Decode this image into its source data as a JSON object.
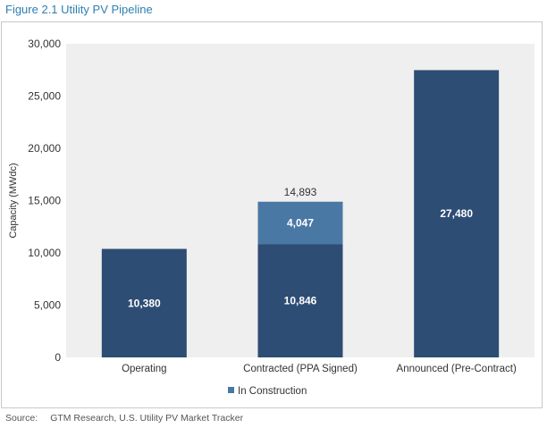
{
  "figure_title": "Figure 2.1  Utility PV Pipeline",
  "source_label": "Source:",
  "source_text": "GTM Research, U.S. Utility PV Market Tracker",
  "colors": {
    "plot_bg": "#efefef",
    "bar_dark": "#2e4d74",
    "bar_light": "#4a78a4",
    "title": "#2e7fb0"
  },
  "chart_data": {
    "type": "bar",
    "stacked": true,
    "categories": [
      "Operating",
      "Contracted (PPA Signed)",
      "Announced (Pre-Contract)"
    ],
    "series": [
      {
        "values": [
          10380,
          10846,
          27480
        ],
        "labels": [
          "10,380",
          "10,846",
          "27,480"
        ],
        "color": "#2e4d74"
      },
      {
        "name": "In Construction",
        "values": [
          0,
          4047,
          0
        ],
        "labels": [
          "",
          "4,047",
          ""
        ],
        "color": "#4a78a4"
      }
    ],
    "totals": [
      null,
      14893,
      null
    ],
    "total_labels": [
      "",
      "14,893",
      ""
    ],
    "ylabel": "Capacity (MWdc)",
    "ylim": [
      0,
      30000
    ],
    "yticks": [
      0,
      5000,
      10000,
      15000,
      20000,
      25000,
      30000
    ],
    "ytick_labels": [
      "0",
      "5,000",
      "10,000",
      "15,000",
      "20,000",
      "25,000",
      "30,000"
    ],
    "legend": [
      "In Construction"
    ],
    "legend_position": "bottom-center"
  }
}
